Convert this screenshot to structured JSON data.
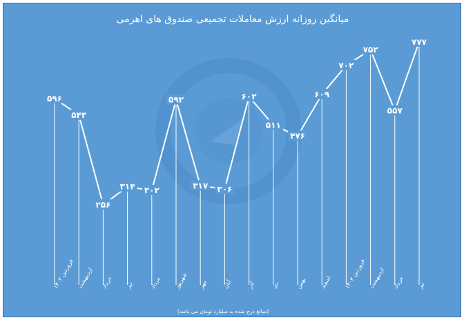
{
  "chart_data": {
    "type": "line",
    "title": "میانگین روزانه ارزش معاملات تجمیعی صندوق های اهرمی",
    "note": "(مبالغ درج شده به میلیارد تومان می باشد)",
    "categories": [
      "فروردین ۱۴۰۲",
      "اردیبهشت",
      "خرداد",
      "تیر",
      "مرداد",
      "شهریور",
      "مهر",
      "آبان",
      "آذر",
      "دی",
      "بهمن",
      "اسفند",
      "فروردین ۱۴۰۳",
      "اردیبهشت",
      "خرداد",
      "تیر"
    ],
    "values": [
      596,
      543,
      256,
      314,
      302,
      592,
      317,
      306,
      602,
      511,
      476,
      609,
      702,
      752,
      557,
      777
    ],
    "value_labels": [
      "۵۹۶",
      "۵۴۳",
      "۲۵۶",
      "۳۱۴",
      "۳۰۲",
      "۵۹۲",
      "۳۱۷",
      "۳۰۶",
      "۶۰۲",
      "۵۱۱",
      "۴۷۶",
      "۶۰۹",
      "۷۰۲",
      "۷۵۲",
      "۵۵۷",
      "۷۷۷"
    ],
    "ylim": [
      0,
      900
    ],
    "grid": false,
    "line_color": "#ffffff",
    "background_color": "#5b9bd5",
    "drop_line_color": "#ffffff"
  },
  "watermark": {
    "icon": "logo-watermark-icon",
    "color": "#4a8bc9"
  }
}
